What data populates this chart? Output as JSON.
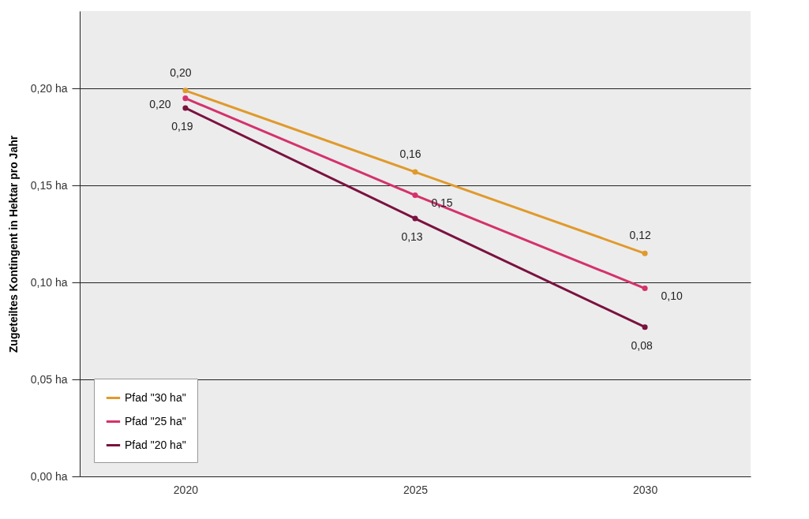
{
  "chart_data": {
    "type": "line",
    "ylabel": "Zugeteiltes Kontingent in Hektar pro Jahr",
    "x": [
      2020,
      2025,
      2030
    ],
    "xlim": [
      2017.7,
      2032.3
    ],
    "xticks": [
      2020,
      2025,
      2030
    ],
    "ylim": [
      0,
      0.24
    ],
    "yticks": [
      {
        "value": 0,
        "label": "0,00 ha"
      },
      {
        "value": 0.05,
        "label": "0,05 ha"
      },
      {
        "value": 0.1,
        "label": "0,10 ha"
      },
      {
        "value": 0.15,
        "label": "0,15 ha"
      },
      {
        "value": 0.2,
        "label": "0,20 ha"
      }
    ],
    "grid": "y",
    "legend": "bottom left",
    "marker": "circle",
    "line_style": "solid",
    "series": [
      {
        "name": "Pfad \"30 ha\"",
        "color": "#e09a2c",
        "values": [
          0.199,
          0.157,
          0.115
        ],
        "value_labels": [
          "0,20",
          "0,16",
          "0,12"
        ]
      },
      {
        "name": "Pfad \"25 ha\"",
        "color": "#d4326c",
        "values": [
          0.195,
          0.145,
          0.097
        ],
        "value_labels": [
          "0,20",
          "0,15",
          "0,10"
        ]
      },
      {
        "name": "Pfad \"20 ha\"",
        "color": "#7a1240",
        "values": [
          0.19,
          0.133,
          0.077
        ],
        "value_labels": [
          "0,19",
          "0,13",
          "0,08"
        ]
      }
    ]
  }
}
